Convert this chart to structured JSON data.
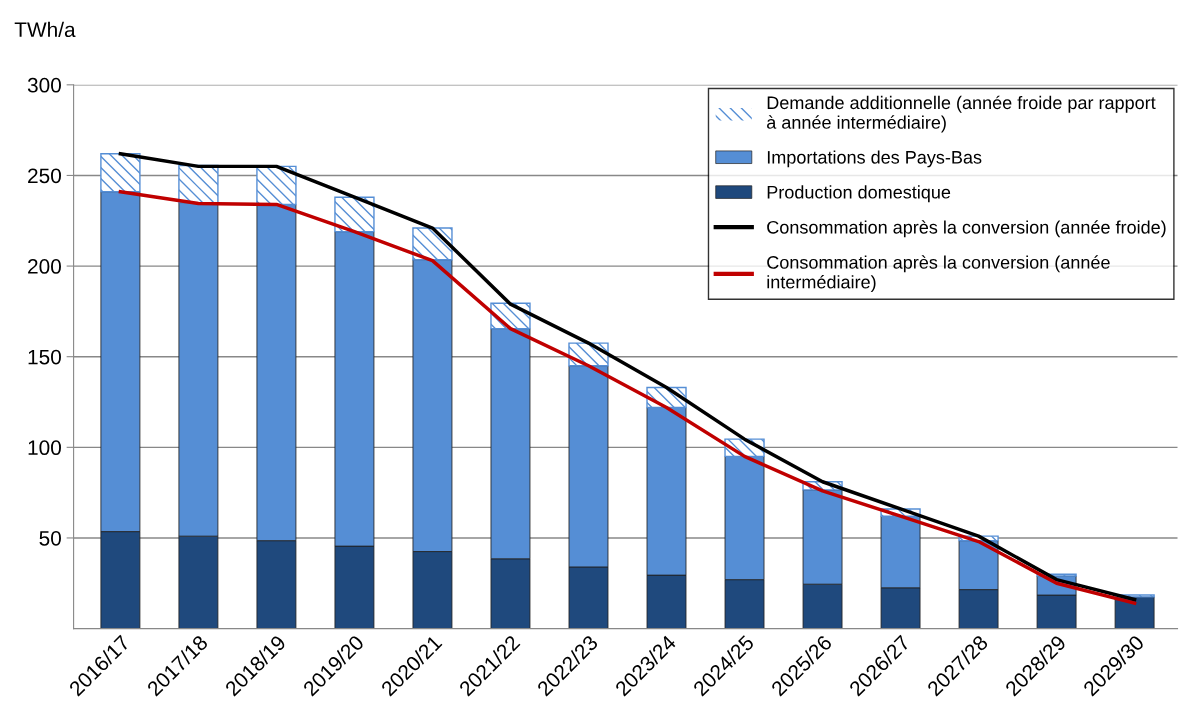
{
  "chart_data": {
    "type": "bar",
    "stacked": true,
    "ylabel": "TWh/a",
    "categories": [
      "2016/17",
      "2017/18",
      "2018/19",
      "2019/20",
      "2020/21",
      "2021/22",
      "2022/23",
      "2023/24",
      "2024/25",
      "2025/26",
      "2026/27",
      "2027/28",
      "2028/29",
      "2029/30"
    ],
    "series": [
      {
        "name": "Production domestique",
        "color": "#1f497d",
        "values": [
          53.5,
          51,
          48.5,
          45.5,
          42.5,
          38.5,
          34,
          29.5,
          27,
          24.5,
          22.5,
          21.5,
          18.5,
          17.5
        ]
      },
      {
        "name": "Importations des Pays-Bas",
        "color": "#558ed5",
        "values": [
          187.5,
          184,
          185.5,
          173.5,
          161,
          127,
          111,
          92.5,
          68,
          52,
          39.5,
          27,
          10.5,
          null
        ]
      },
      {
        "name": "Demande additionnelle (année froide par rapport\nà année intermédiaire)",
        "color": "#558ed5",
        "values": [
          21,
          20.5,
          21,
          19,
          17.5,
          14,
          12.5,
          11,
          9.5,
          4.5,
          4,
          2.5,
          1,
          1
        ]
      },
      {
        "name": "Consommation après la conversion (année froide)",
        "type": "line",
        "color": "#000000",
        "values": [
          262,
          255,
          255,
          238,
          221,
          179,
          157.5,
          133,
          104.5,
          81,
          66,
          51,
          27,
          16
        ]
      },
      {
        "name": "Consommation après la conversion (année\nintermédiaire)",
        "type": "line",
        "color": "#c00000",
        "values": [
          241,
          234.5,
          234,
          219,
          203,
          165.5,
          145,
          122,
          95,
          76,
          62,
          48,
          25,
          14
        ]
      }
    ],
    "ylim": [
      0,
      300
    ],
    "yticks": [
      50,
      100,
      150,
      200,
      250,
      300
    ],
    "grid": "y",
    "legend": "top right",
    "marker": "none",
    "line_style": "solid"
  }
}
